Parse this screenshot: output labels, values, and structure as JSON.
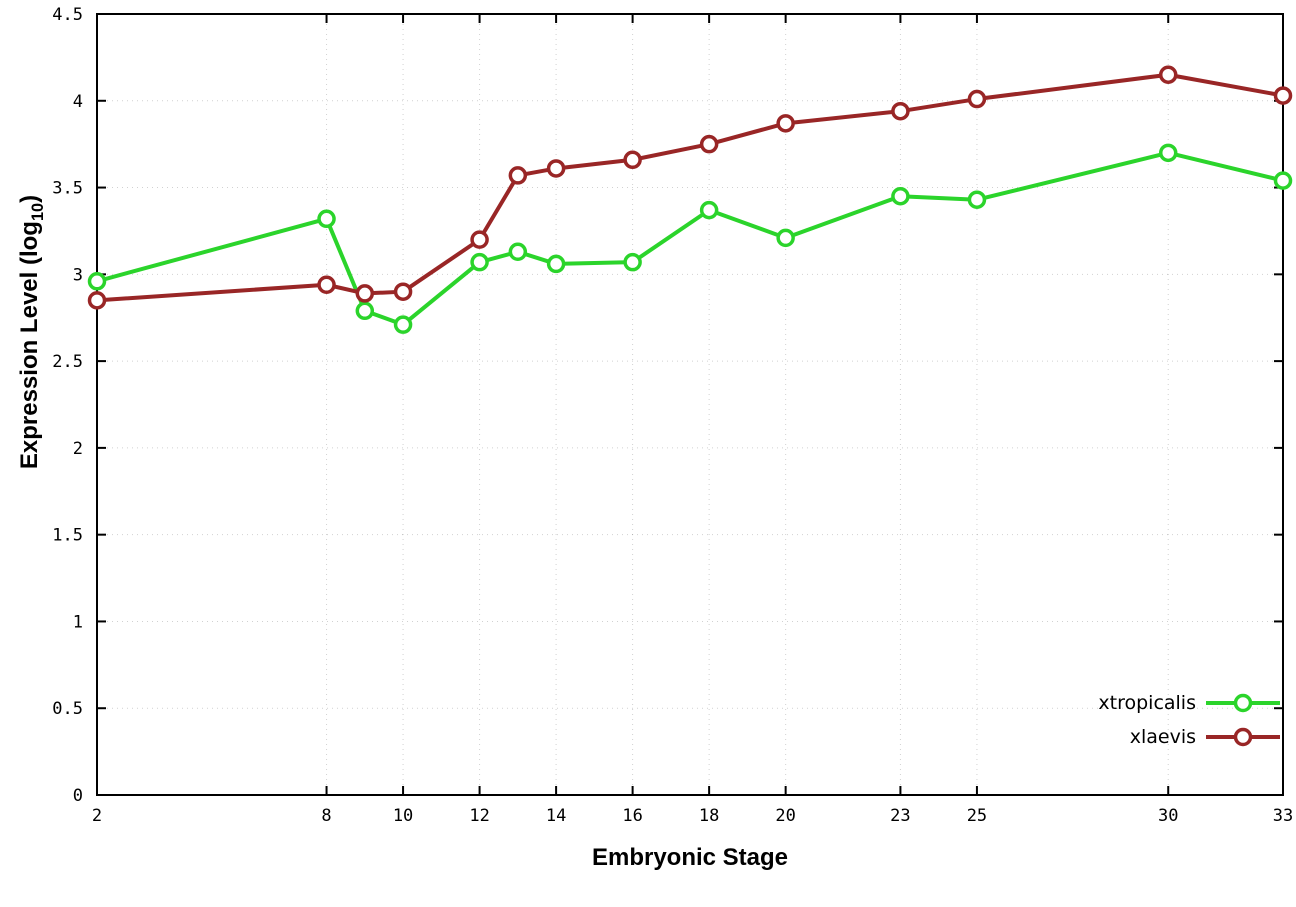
{
  "chart_data": {
    "type": "line",
    "title": "",
    "xlabel": "Embryonic Stage",
    "ylabel": {
      "prefix": "Expression Level (log",
      "sub": "10",
      "suffix": ")"
    },
    "xlim": [
      2,
      33
    ],
    "ylim": [
      0,
      4.5
    ],
    "xticks": [
      "2",
      "8",
      "10",
      "12",
      "14",
      "16",
      "18",
      "20",
      "23",
      "25",
      "30",
      "33"
    ],
    "yticks": [
      "0",
      "0.5",
      "1",
      "1.5",
      "2",
      "2.5",
      "3",
      "3.5",
      "4",
      "4.5"
    ],
    "grid": true,
    "legend_position": "bottom-right",
    "x": [
      2,
      8,
      9,
      10,
      12,
      13,
      14,
      16,
      18,
      20,
      23,
      25,
      30,
      33
    ],
    "series": [
      {
        "name": "xtropicalis",
        "color": "#2bd42b",
        "marker": "open-circle",
        "values": [
          2.96,
          3.32,
          2.79,
          2.71,
          3.07,
          3.13,
          3.06,
          3.07,
          3.37,
          3.21,
          3.45,
          3.43,
          3.7,
          3.54
        ]
      },
      {
        "name": "xlaevis",
        "color": "#992626",
        "marker": "open-circle",
        "values": [
          2.85,
          2.94,
          2.89,
          2.9,
          3.2,
          3.57,
          3.61,
          3.66,
          3.75,
          3.87,
          3.94,
          4.01,
          4.15,
          4.03
        ]
      }
    ],
    "colors": {
      "border": "#000000",
      "grid": "#000000",
      "background": "#ffffff"
    }
  }
}
